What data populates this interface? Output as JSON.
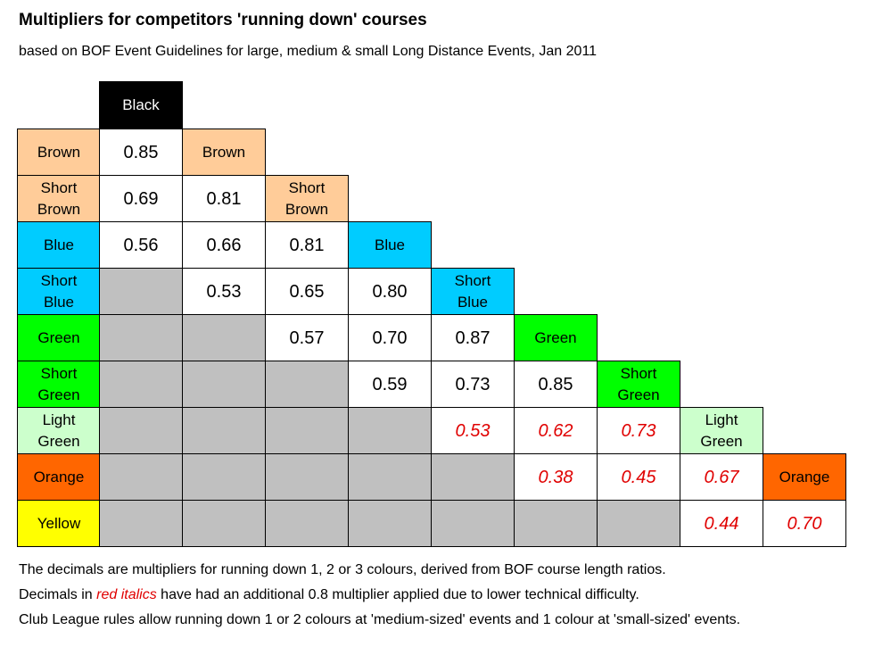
{
  "header": {
    "title": "Multipliers for competitors 'running down' courses",
    "subtitle": "based on BOF Event Guidelines for large, medium & small Long Distance Events, Jan 2011"
  },
  "table": {
    "columns": [
      {
        "label": "Black",
        "color": "#000000",
        "text_color": "#ffffff"
      },
      {
        "label": "Brown",
        "color": "#ffcc99",
        "text_color": "#000000"
      },
      {
        "label": "Short\nBrown",
        "color": "#ffcc99",
        "text_color": "#000000"
      },
      {
        "label": "Blue",
        "color": "#00ccff",
        "text_color": "#000000"
      },
      {
        "label": "Short\nBlue",
        "color": "#00ccff",
        "text_color": "#000000"
      },
      {
        "label": "Green",
        "color": "#00ff00",
        "text_color": "#000000"
      },
      {
        "label": "Short\nGreen",
        "color": "#00ff00",
        "text_color": "#000000"
      },
      {
        "label": "Light\nGreen",
        "color": "#ccffcc",
        "text_color": "#000000"
      },
      {
        "label": "Orange",
        "color": "#ff6600",
        "text_color": "#000000"
      }
    ],
    "rows": [
      {
        "label": "Brown",
        "color": "#ffcc99",
        "cells": [
          {
            "text": "0.85"
          }
        ]
      },
      {
        "label": "Short\nBrown",
        "color": "#ffcc99",
        "cells": [
          {
            "text": "0.69"
          },
          {
            "text": "0.81"
          }
        ]
      },
      {
        "label": "Blue",
        "color": "#00ccff",
        "cells": [
          {
            "text": "0.56"
          },
          {
            "text": "0.66"
          },
          {
            "text": "0.81"
          }
        ]
      },
      {
        "label": "Short\nBlue",
        "color": "#00ccff",
        "cells": [
          null,
          {
            "text": "0.53"
          },
          {
            "text": "0.65"
          },
          {
            "text": "0.80"
          }
        ]
      },
      {
        "label": "Green",
        "color": "#00ff00",
        "cells": [
          null,
          null,
          {
            "text": "0.57"
          },
          {
            "text": "0.70"
          },
          {
            "text": "0.87"
          }
        ]
      },
      {
        "label": "Short\nGreen",
        "color": "#00ff00",
        "cells": [
          null,
          null,
          null,
          {
            "text": "0.59"
          },
          {
            "text": "0.73"
          },
          {
            "text": "0.85"
          }
        ]
      },
      {
        "label": "Light\nGreen",
        "color": "#ccffcc",
        "cells": [
          null,
          null,
          null,
          null,
          {
            "text": "0.53",
            "emphasis": true
          },
          {
            "text": "0.62",
            "emphasis": true
          },
          {
            "text": "0.73",
            "emphasis": true
          }
        ]
      },
      {
        "label": "Orange",
        "color": "#ff6600",
        "cells": [
          null,
          null,
          null,
          null,
          null,
          {
            "text": "0.38",
            "emphasis": true
          },
          {
            "text": "0.45",
            "emphasis": true
          },
          {
            "text": "0.67",
            "emphasis": true
          }
        ]
      },
      {
        "label": "Yellow",
        "color": "#ffff00",
        "cells": [
          null,
          null,
          null,
          null,
          null,
          null,
          null,
          {
            "text": "0.44",
            "emphasis": true
          },
          {
            "text": "0.70",
            "emphasis": true
          }
        ]
      }
    ]
  },
  "notes": [
    "The decimals are multipliers for running down 1, 2 or 3 colours, derived from BOF course length ratios.",
    [
      "Decimals in ",
      "red italics",
      " have had an additional 0.8 multiplier applied due to lower technical difficulty."
    ],
    "Club League rules allow running down 1 or 2 colours at 'medium-sized' events and 1 colour at 'small-sized' events."
  ]
}
